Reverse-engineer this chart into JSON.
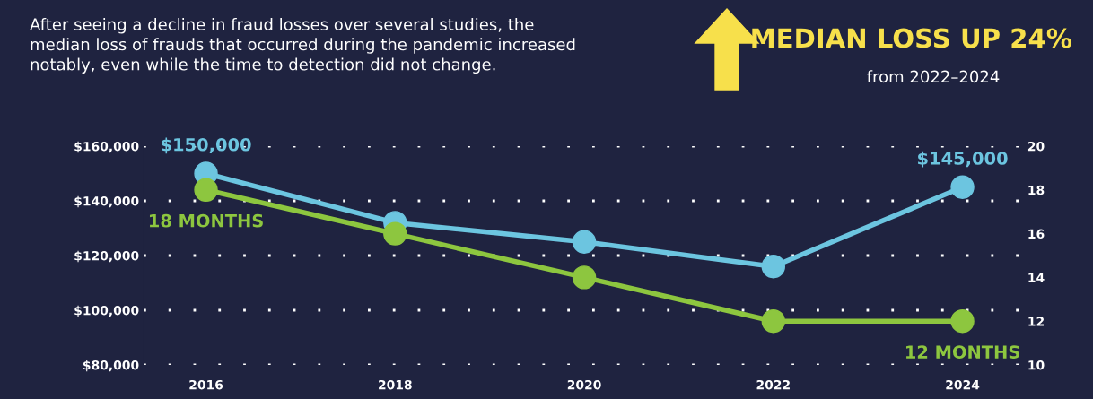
{
  "chart_data": {
    "type": "line",
    "title": "MEDIAN LOSS UP 24%",
    "subtitle": "from 2022–2024",
    "annotations": [
      "After seeing a decline in fraud losses over several studies, the\nmedian loss of frauds that occurred during the pandemic increased\nnotably, even while the time to detection did not change."
    ],
    "categories": [
      "2016",
      "2018",
      "2020",
      "2022",
      "2024"
    ],
    "series": [
      {
        "color": "#6cc5e0",
        "values": [
          150000,
          132000,
          125000,
          116000,
          145000
        ],
        "value_labels": [
          "$150,000",
          null,
          null,
          null,
          "$145,000"
        ]
      },
      {
        "color": "#8dc63f",
        "values": [
          18,
          16,
          14,
          12,
          12
        ],
        "axis": "y2",
        "value_labels": [
          "18 MONTHS",
          null,
          null,
          null,
          "12 MONTHS"
        ]
      }
    ],
    "ylim": [
      80000,
      160000
    ],
    "yticks": [
      {
        "value": 80000,
        "label": "$80,000"
      },
      {
        "value": 100000,
        "label": "$100,000"
      },
      {
        "value": 120000,
        "label": "$120,000"
      },
      {
        "value": 140000,
        "label": "$140,000"
      },
      {
        "value": 160000,
        "label": "$160,000"
      }
    ],
    "y2lim": [
      10,
      20
    ],
    "y2ticks": [
      10,
      12,
      14,
      16,
      18,
      20
    ],
    "grid": "y",
    "marker": "circle",
    "line_style": "solid"
  }
}
